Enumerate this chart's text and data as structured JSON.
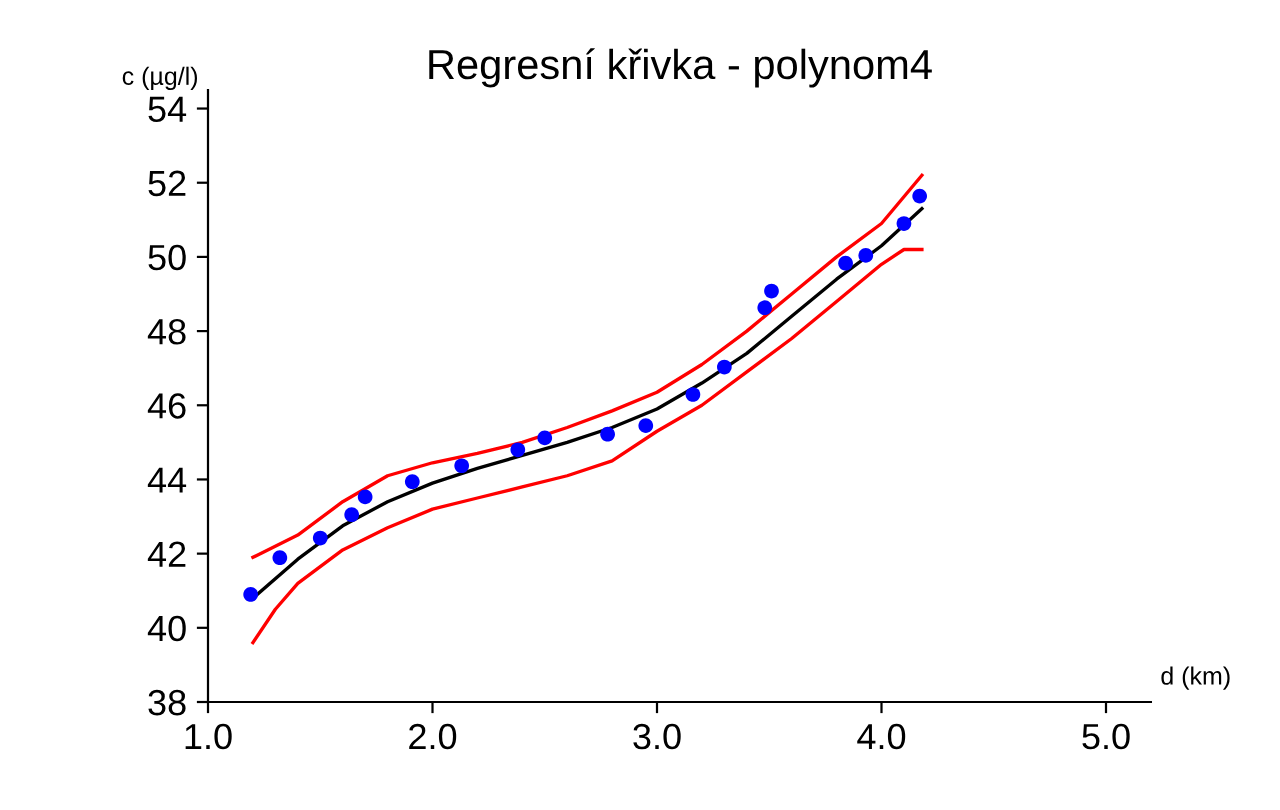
{
  "chart_data": {
    "type": "scatter",
    "title": "Regresní křivka - polynom4",
    "xlabel": "d (km)",
    "ylabel": "c (µg/l)",
    "xlim": [
      1.0,
      5.2
    ],
    "ylim": [
      38,
      54.5
    ],
    "xticks": [
      {
        "value": 1.0,
        "label": "1.0"
      },
      {
        "value": 2.0,
        "label": "2.0"
      },
      {
        "value": 3.0,
        "label": "3.0"
      },
      {
        "value": 4.0,
        "label": "4.0"
      },
      {
        "value": 5.0,
        "label": "5.0"
      }
    ],
    "yticks": [
      38,
      40,
      42,
      44,
      46,
      48,
      50,
      52,
      54
    ],
    "grid": false,
    "legend": false,
    "series": [
      {
        "type": "line",
        "color": "#000000",
        "marker": "none",
        "x": [
          1.2,
          1.4,
          1.6,
          1.8,
          2.0,
          2.2,
          2.4,
          2.6,
          2.8,
          3.0,
          3.2,
          3.4,
          3.6,
          3.8,
          4.0,
          4.18
        ],
        "values": [
          40.8,
          41.85,
          42.75,
          43.4,
          43.9,
          44.3,
          44.65,
          45.0,
          45.4,
          45.9,
          46.6,
          47.4,
          48.4,
          49.4,
          50.3,
          51.3
        ]
      },
      {
        "type": "line",
        "color": "#ff0000",
        "marker": "none",
        "x": [
          1.2,
          1.4,
          1.6,
          1.8,
          2.0,
          2.2,
          2.4,
          2.6,
          2.8,
          3.0,
          3.2,
          3.4,
          3.6,
          3.8,
          4.0,
          4.18
        ],
        "values": [
          41.9,
          42.5,
          43.4,
          44.1,
          44.45,
          44.7,
          45.0,
          45.4,
          45.85,
          46.35,
          47.1,
          48.0,
          49.0,
          50.0,
          50.9,
          52.2
        ]
      },
      {
        "type": "line",
        "color": "#ff0000",
        "marker": "none",
        "x": [
          1.2,
          1.3,
          1.4,
          1.6,
          1.8,
          2.0,
          2.2,
          2.4,
          2.6,
          2.8,
          3.0,
          3.2,
          3.4,
          3.6,
          3.8,
          4.0,
          4.1,
          4.18
        ],
        "values": [
          39.6,
          40.5,
          41.2,
          42.1,
          42.7,
          43.2,
          43.5,
          43.8,
          44.1,
          44.5,
          45.3,
          46.0,
          46.9,
          47.8,
          48.8,
          49.8,
          50.2,
          50.2
        ]
      },
      {
        "color": "#0000ff",
        "marker": "circle",
        "x": [
          1.19,
          1.32,
          1.5,
          1.64,
          1.7,
          1.91,
          2.13,
          2.38,
          2.5,
          2.78,
          2.95,
          3.16,
          3.3,
          3.48,
          3.51,
          3.84,
          3.93,
          4.1,
          4.17
        ],
        "values": [
          40.9,
          41.89,
          42.42,
          43.05,
          43.53,
          43.94,
          44.37,
          44.8,
          45.12,
          45.22,
          45.45,
          46.29,
          47.03,
          48.63,
          49.08,
          49.83,
          50.04,
          50.9,
          51.64
        ]
      }
    ]
  }
}
